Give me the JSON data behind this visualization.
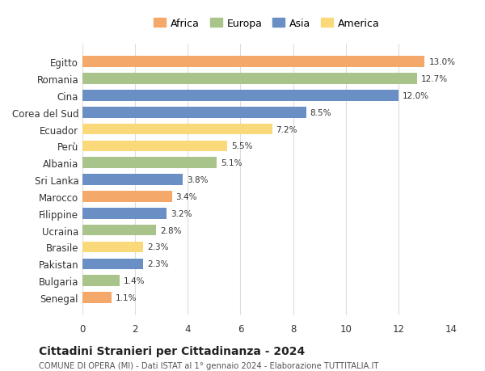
{
  "categories": [
    "Egitto",
    "Romania",
    "Cina",
    "Corea del Sud",
    "Ecuador",
    "Perù",
    "Albania",
    "Sri Lanka",
    "Marocco",
    "Filippine",
    "Ucraina",
    "Brasile",
    "Pakistan",
    "Bulgaria",
    "Senegal"
  ],
  "values": [
    13.0,
    12.7,
    12.0,
    8.5,
    7.2,
    5.5,
    5.1,
    3.8,
    3.4,
    3.2,
    2.8,
    2.3,
    2.3,
    1.4,
    1.1
  ],
  "continents": [
    "Africa",
    "Europa",
    "Asia",
    "Asia",
    "America",
    "America",
    "Europa",
    "Asia",
    "Africa",
    "Asia",
    "Europa",
    "America",
    "Asia",
    "Europa",
    "Africa"
  ],
  "colors": {
    "Africa": "#F4A96A",
    "Europa": "#A8C48A",
    "Asia": "#6A8FC4",
    "America": "#F9D97A"
  },
  "legend_order": [
    "Africa",
    "Europa",
    "Asia",
    "America"
  ],
  "title": "Cittadini Stranieri per Cittadinanza - 2024",
  "subtitle": "COMUNE DI OPERA (MI) - Dati ISTAT al 1° gennaio 2024 - Elaborazione TUTTITALIA.IT",
  "xlim": [
    0,
    14
  ],
  "xticks": [
    0,
    2,
    4,
    6,
    8,
    10,
    12,
    14
  ],
  "bar_height": 0.65,
  "bg_color": "#ffffff",
  "grid_color": "#dddddd"
}
